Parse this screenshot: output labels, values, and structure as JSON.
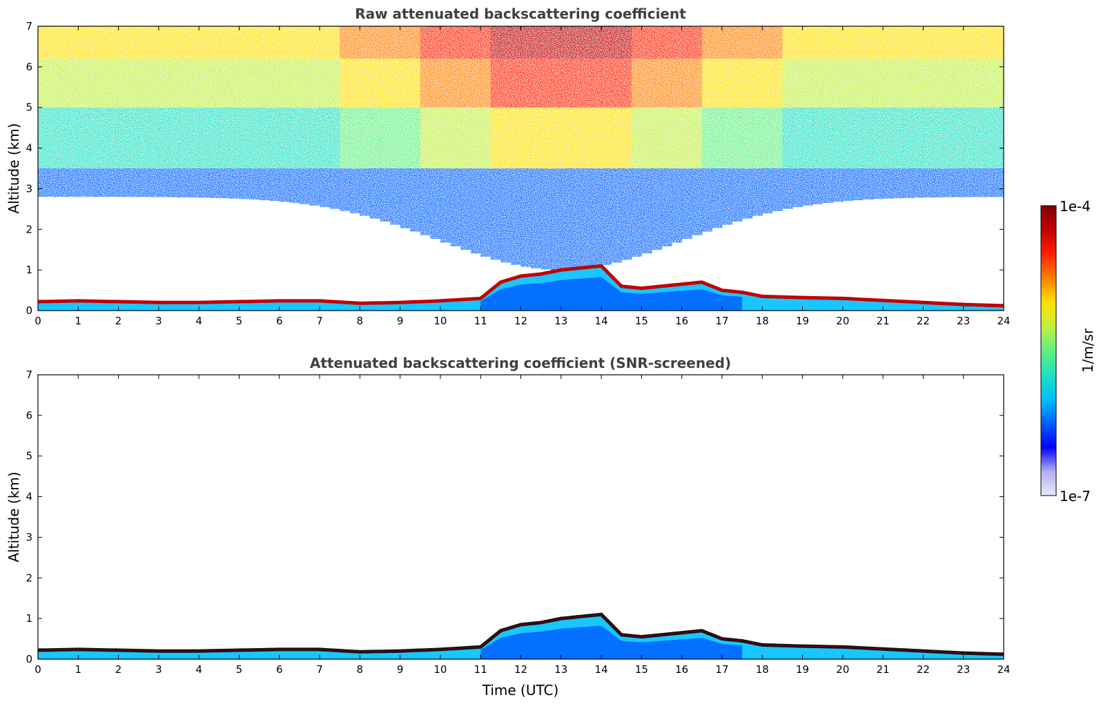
{
  "chart_data": [
    {
      "type": "heatmap",
      "title": "Raw attenuated backscattering coefficient",
      "xlabel": "",
      "ylabel": "Altitude (km)",
      "xlim": [
        0,
        24
      ],
      "ylim": [
        0,
        7
      ],
      "xticks": [
        "0",
        "1",
        "2",
        "3",
        "4",
        "5",
        "6",
        "7",
        "8",
        "9",
        "10",
        "11",
        "12",
        "13",
        "14",
        "15",
        "16",
        "17",
        "18",
        "19",
        "20",
        "21",
        "22",
        "23",
        "24"
      ],
      "yticks": [
        "0",
        "1",
        "2",
        "3",
        "4",
        "5",
        "6",
        "7"
      ],
      "grid": false,
      "features": {
        "boundary_layer_top_km": [
          [
            0,
            0.22
          ],
          [
            1,
            0.24
          ],
          [
            2,
            0.22
          ],
          [
            3,
            0.2
          ],
          [
            4,
            0.2
          ],
          [
            5,
            0.22
          ],
          [
            6,
            0.24
          ],
          [
            7,
            0.24
          ],
          [
            8,
            0.18
          ],
          [
            9,
            0.2
          ],
          [
            10,
            0.24
          ],
          [
            11,
            0.3
          ],
          [
            11.5,
            0.7
          ],
          [
            12,
            0.85
          ],
          [
            12.5,
            0.9
          ],
          [
            13,
            1.0
          ],
          [
            13.5,
            1.05
          ],
          [
            14,
            1.1
          ],
          [
            14.5,
            0.6
          ],
          [
            15,
            0.55
          ],
          [
            15.5,
            0.6
          ],
          [
            16,
            0.65
          ],
          [
            16.5,
            0.7
          ],
          [
            17,
            0.5
          ],
          [
            17.5,
            0.45
          ],
          [
            18,
            0.35
          ],
          [
            19,
            0.32
          ],
          [
            20,
            0.3
          ],
          [
            21,
            0.25
          ],
          [
            22,
            0.2
          ],
          [
            23,
            0.15
          ],
          [
            24,
            0.12
          ]
        ],
        "noise_shown": true
      }
    },
    {
      "type": "heatmap",
      "title": "Attenuated backscattering coefficient (SNR-screened)",
      "xlabel": "Time (UTC)",
      "ylabel": "Altitude (km)",
      "xlim": [
        0,
        24
      ],
      "ylim": [
        0,
        7
      ],
      "xticks": [
        "0",
        "1",
        "2",
        "3",
        "4",
        "5",
        "6",
        "7",
        "8",
        "9",
        "10",
        "11",
        "12",
        "13",
        "14",
        "15",
        "16",
        "17",
        "18",
        "19",
        "20",
        "21",
        "22",
        "23",
        "24"
      ],
      "yticks": [
        "0",
        "1",
        "2",
        "3",
        "4",
        "5",
        "6",
        "7"
      ],
      "grid": false,
      "features": {
        "boundary_layer_top_km": [
          [
            0,
            0.22
          ],
          [
            1,
            0.24
          ],
          [
            2,
            0.22
          ],
          [
            3,
            0.2
          ],
          [
            4,
            0.2
          ],
          [
            5,
            0.22
          ],
          [
            6,
            0.24
          ],
          [
            7,
            0.24
          ],
          [
            8,
            0.18
          ],
          [
            9,
            0.2
          ],
          [
            10,
            0.24
          ],
          [
            11,
            0.3
          ],
          [
            11.5,
            0.7
          ],
          [
            12,
            0.85
          ],
          [
            12.5,
            0.9
          ],
          [
            13,
            1.0
          ],
          [
            13.5,
            1.05
          ],
          [
            14,
            1.1
          ],
          [
            14.5,
            0.6
          ],
          [
            15,
            0.55
          ],
          [
            15.5,
            0.6
          ],
          [
            16,
            0.65
          ],
          [
            16.5,
            0.7
          ],
          [
            17,
            0.5
          ],
          [
            17.5,
            0.45
          ],
          [
            18,
            0.35
          ],
          [
            19,
            0.32
          ],
          [
            20,
            0.3
          ],
          [
            21,
            0.25
          ],
          [
            22,
            0.2
          ],
          [
            23,
            0.15
          ],
          [
            24,
            0.12
          ]
        ],
        "noise_shown": false
      }
    }
  ],
  "colorbar": {
    "label": "1/m/sr",
    "max_label": "1e-4",
    "min_label": "1e-7",
    "scale": "log",
    "range": [
      1e-07,
      0.0001
    ],
    "colormap": [
      "#e8e8f8",
      "#b0b0f0",
      "#0000ff",
      "#0060ff",
      "#00c0ff",
      "#20e0c0",
      "#60f080",
      "#c0f040",
      "#ffe000",
      "#ff8000",
      "#ff2000",
      "#c00000",
      "#800000"
    ]
  }
}
